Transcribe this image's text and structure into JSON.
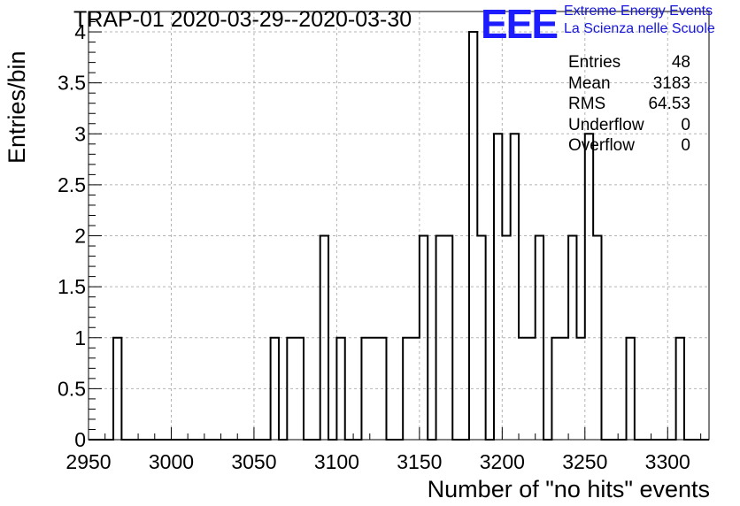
{
  "header": {
    "title": "TRAP-01 2020-03-29--2020-03-30",
    "logo_text": "EEE",
    "logo_line1": "Extreme Energy Events",
    "logo_line2": "La Scienza nelle Scuole",
    "logo_color": "#1c1cff"
  },
  "stats": {
    "rows": [
      {
        "label": "Entries",
        "value": "48"
      },
      {
        "label": "Mean",
        "value": "3183"
      },
      {
        "label": "RMS",
        "value": "64.53"
      },
      {
        "label": "Underflow",
        "value": "0"
      },
      {
        "label": "Overflow",
        "value": "0"
      }
    ]
  },
  "chart_data": {
    "type": "bar",
    "subtype": "step-histogram",
    "title": "TRAP-01 2020-03-29--2020-03-30",
    "xlabel": "Number of \"no hits\" events",
    "ylabel": "Entries/bin",
    "xlim": [
      2950,
      3325
    ],
    "ylim": [
      0,
      4.2
    ],
    "bin_width": 5,
    "xticks": [
      2950,
      3000,
      3050,
      3100,
      3150,
      3200,
      3250,
      3300
    ],
    "xtick_labels": [
      "2950",
      "3000",
      "3050",
      "3100",
      "3150",
      "3200",
      "3250",
      "3300"
    ],
    "yticks": [
      0,
      0.5,
      1,
      1.5,
      2,
      2.5,
      3,
      3.5,
      4
    ],
    "ytick_labels": [
      "0",
      "0.5",
      "1",
      "1.5",
      "2",
      "2.5",
      "3",
      "3.5",
      "4"
    ],
    "grid": true,
    "line_color": "#000000",
    "bins": [
      {
        "x": 2965,
        "count": 1
      },
      {
        "x": 3060,
        "count": 1
      },
      {
        "x": 3070,
        "count": 1
      },
      {
        "x": 3075,
        "count": 1
      },
      {
        "x": 3090,
        "count": 2
      },
      {
        "x": 3100,
        "count": 1
      },
      {
        "x": 3115,
        "count": 1
      },
      {
        "x": 3120,
        "count": 1
      },
      {
        "x": 3125,
        "count": 1
      },
      {
        "x": 3140,
        "count": 1
      },
      {
        "x": 3145,
        "count": 1
      },
      {
        "x": 3150,
        "count": 2
      },
      {
        "x": 3160,
        "count": 2
      },
      {
        "x": 3165,
        "count": 2
      },
      {
        "x": 3180,
        "count": 4
      },
      {
        "x": 3185,
        "count": 2
      },
      {
        "x": 3195,
        "count": 3
      },
      {
        "x": 3200,
        "count": 2
      },
      {
        "x": 3205,
        "count": 3
      },
      {
        "x": 3210,
        "count": 1
      },
      {
        "x": 3215,
        "count": 1
      },
      {
        "x": 3220,
        "count": 2
      },
      {
        "x": 3230,
        "count": 1
      },
      {
        "x": 3235,
        "count": 1
      },
      {
        "x": 3240,
        "count": 2
      },
      {
        "x": 3245,
        "count": 1
      },
      {
        "x": 3250,
        "count": 3
      },
      {
        "x": 3255,
        "count": 2
      },
      {
        "x": 3275,
        "count": 1
      },
      {
        "x": 3305,
        "count": 1
      }
    ]
  }
}
